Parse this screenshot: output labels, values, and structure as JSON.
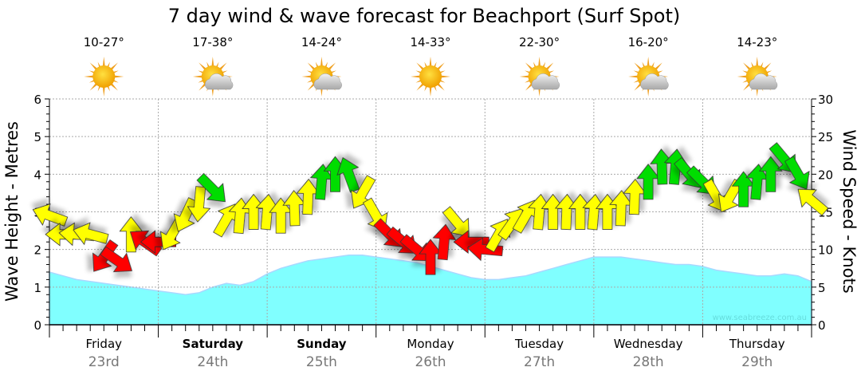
{
  "chart_data": {
    "type": "line",
    "title": "7 day wind & wave forecast for Beachport  (Surf Spot)",
    "ylabel": "Wave Height - Metres",
    "y2label": "Wind Speed - Knots",
    "ylim": [
      0,
      6
    ],
    "y2lim": [
      0,
      30
    ],
    "yticks": [
      "0",
      "1",
      "2",
      "3",
      "4",
      "5",
      "6"
    ],
    "y2ticks": [
      "0",
      "5",
      "10",
      "15",
      "20",
      "25",
      "30"
    ],
    "grid": true,
    "watermark": "www.seabreeze.com.au",
    "days": [
      {
        "name": "Friday",
        "date": "23rd",
        "bold": false,
        "temp": "10-27°",
        "icon": "sun"
      },
      {
        "name": "Saturday",
        "date": "24th",
        "bold": true,
        "temp": "17-38°",
        "icon": "sun-cloud"
      },
      {
        "name": "Sunday",
        "date": "25th",
        "bold": true,
        "temp": "14-24°",
        "icon": "sun-cloud"
      },
      {
        "name": "Monday",
        "date": "26th",
        "bold": false,
        "temp": "14-33°",
        "icon": "sun"
      },
      {
        "name": "Tuesday",
        "date": "27th",
        "bold": false,
        "temp": "22-30°",
        "icon": "sun-cloud"
      },
      {
        "name": "Wednesday",
        "date": "28th",
        "bold": false,
        "temp": "16-20°",
        "icon": "sun-cloud"
      },
      {
        "name": "Thursday",
        "date": "29th",
        "bold": false,
        "temp": "14-23°",
        "icon": "sun-cloud"
      }
    ],
    "step_hours": 3,
    "wave_height_m": [
      1.4,
      1.3,
      1.2,
      1.15,
      1.1,
      1.05,
      1.0,
      0.95,
      0.9,
      0.85,
      0.8,
      0.85,
      1.0,
      1.1,
      1.05,
      1.15,
      1.35,
      1.5,
      1.6,
      1.7,
      1.75,
      1.8,
      1.85,
      1.85,
      1.8,
      1.75,
      1.7,
      1.65,
      1.55,
      1.45,
      1.35,
      1.25,
      1.2,
      1.2,
      1.25,
      1.3,
      1.4,
      1.5,
      1.6,
      1.7,
      1.8,
      1.8,
      1.8,
      1.75,
      1.7,
      1.65,
      1.6,
      1.6,
      1.55,
      1.45,
      1.4,
      1.35,
      1.3,
      1.3,
      1.35,
      1.3,
      1.15
    ],
    "wind_knots": [
      14.5,
      12,
      12,
      12,
      9,
      8.5,
      12,
      11,
      11,
      12,
      14.5,
      16,
      18,
      14,
      14.5,
      15,
      15,
      14.5,
      15.5,
      17,
      19,
      20,
      20,
      17.5,
      14.5,
      12,
      11,
      10,
      9,
      11,
      13.5,
      11,
      10,
      12,
      13.5,
      14.5,
      15,
      15,
      15,
      15,
      15,
      15,
      15.5,
      17,
      19,
      21,
      21,
      20,
      19,
      17,
      17,
      18,
      19,
      20,
      22,
      20,
      16.5
    ],
    "wind_arrow_deg": [
      200,
      180,
      185,
      195,
      125,
      35,
      270,
      215,
      180,
      120,
      115,
      95,
      45,
      300,
      275,
      270,
      275,
      270,
      268,
      272,
      275,
      270,
      250,
      120,
      60,
      45,
      40,
      40,
      270,
      275,
      50,
      180,
      185,
      300,
      305,
      300,
      275,
      270,
      272,
      270,
      275,
      270,
      272,
      272,
      270,
      268,
      275,
      50,
      45,
      60,
      120,
      270,
      275,
      270,
      50,
      60,
      220
    ],
    "wind_color": [
      "#ffff00",
      "#ffff00",
      "#ffff00",
      "#ffff00",
      "#ff0000",
      "#ff0000",
      "#ffff00",
      "#ff0000",
      "#ff0000",
      "#ffff00",
      "#ffff00",
      "#ffff00",
      "#00dd00",
      "#ffff00",
      "#ffff00",
      "#ffff00",
      "#ffff00",
      "#ffff00",
      "#ffff00",
      "#ffff00",
      "#00dd00",
      "#00dd00",
      "#00dd00",
      "#ffff00",
      "#ffff00",
      "#ff0000",
      "#ff0000",
      "#ff0000",
      "#ff0000",
      "#ff0000",
      "#ffff00",
      "#ff0000",
      "#ff0000",
      "#ffff00",
      "#ffff00",
      "#ffff00",
      "#ffff00",
      "#ffff00",
      "#ffff00",
      "#ffff00",
      "#ffff00",
      "#ffff00",
      "#ffff00",
      "#ffff00",
      "#00dd00",
      "#00dd00",
      "#00dd00",
      "#00dd00",
      "#00dd00",
      "#ffff00",
      "#ffff00",
      "#00dd00",
      "#00dd00",
      "#00dd00",
      "#00dd00",
      "#00dd00",
      "#ffff00"
    ],
    "colors": {
      "wave_fill": "#80ffff",
      "wave_line": "#a8d8ff",
      "grid": "#aaaaaa",
      "axis": "#000000",
      "date": "#777777",
      "watermark": "#66dddd"
    }
  }
}
